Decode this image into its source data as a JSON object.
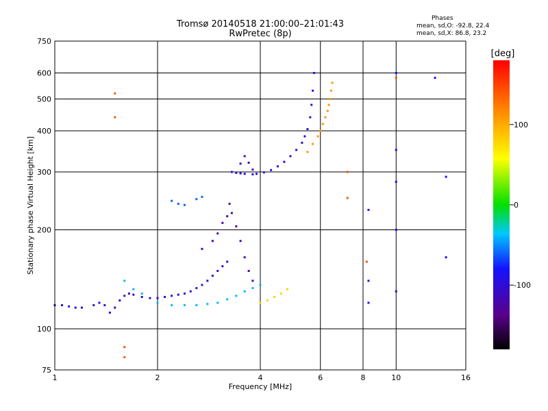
{
  "header": {
    "title": "Tromsø 20140518 21:00:00–21:01:43",
    "subtitle": "RwPretec (8p)",
    "phase_heading": "Phases",
    "phase_o": "mean, sd,O: -92.8, 22.4",
    "phase_x": "mean, sd,X: 86.8, 23.2"
  },
  "chart_data": {
    "type": "scatter",
    "xlabel": "Frequency [MHz]",
    "ylabel": "Stationary phase Virtual Height [km]",
    "x_scale": "log",
    "y_scale": "log",
    "xlim": [
      1,
      16
    ],
    "ylim": [
      75,
      750
    ],
    "x_ticks": [
      1,
      2,
      4,
      6,
      8,
      10,
      16
    ],
    "y_ticks": [
      75,
      100,
      200,
      300,
      400,
      500,
      600,
      750
    ],
    "grid": true,
    "colorbar": {
      "title": "[deg]",
      "range": [
        -180,
        180
      ],
      "ticks": [
        100,
        0,
        -100
      ]
    },
    "series": [
      {
        "values": [
          [
            1.0,
            118
          ],
          [
            1.05,
            118
          ],
          [
            1.1,
            117
          ],
          [
            1.15,
            116
          ],
          [
            1.2,
            116
          ],
          [
            1.3,
            118
          ],
          [
            1.35,
            120
          ],
          [
            1.4,
            118
          ],
          [
            1.45,
            112
          ],
          [
            1.5,
            116
          ],
          [
            1.55,
            122
          ],
          [
            1.6,
            126
          ],
          [
            1.65,
            128
          ],
          [
            1.7,
            127
          ],
          [
            1.8,
            125
          ],
          [
            1.9,
            124
          ],
          [
            2.0,
            124
          ],
          [
            2.1,
            125
          ],
          [
            2.2,
            126
          ],
          [
            2.3,
            127
          ],
          [
            2.4,
            128
          ],
          [
            2.5,
            130
          ],
          [
            2.6,
            133
          ],
          [
            2.7,
            136
          ],
          [
            2.8,
            140
          ],
          [
            2.9,
            145
          ],
          [
            3.0,
            150
          ],
          [
            3.1,
            155
          ],
          [
            3.2,
            160
          ]
        ],
        "phase": -100
      },
      {
        "values": [
          [
            1.6,
            140
          ],
          [
            1.7,
            132
          ],
          [
            1.8,
            128
          ],
          [
            2.0,
            120
          ],
          [
            2.2,
            118
          ],
          [
            2.4,
            118
          ],
          [
            2.6,
            118
          ],
          [
            2.8,
            119
          ],
          [
            3.0,
            120
          ],
          [
            3.2,
            123
          ],
          [
            3.4,
            126
          ],
          [
            3.6,
            130
          ],
          [
            3.8,
            133
          ],
          [
            4.0,
            136
          ]
        ],
        "phase": -40
      },
      {
        "values": [
          [
            2.7,
            175
          ],
          [
            2.9,
            185
          ],
          [
            3.0,
            195
          ],
          [
            3.1,
            210
          ],
          [
            3.2,
            220
          ],
          [
            3.25,
            240
          ],
          [
            3.3,
            225
          ],
          [
            3.4,
            205
          ],
          [
            3.5,
            185
          ],
          [
            3.6,
            165
          ],
          [
            3.7,
            150
          ],
          [
            3.8,
            140
          ]
        ],
        "phase": -120
      },
      {
        "values": [
          [
            3.3,
            300
          ],
          [
            3.4,
            298
          ],
          [
            3.5,
            297
          ],
          [
            3.6,
            296
          ],
          [
            3.8,
            295
          ],
          [
            3.9,
            296
          ],
          [
            4.1,
            299
          ],
          [
            4.3,
            304
          ],
          [
            4.5,
            312
          ],
          [
            4.7,
            322
          ],
          [
            4.9,
            335
          ],
          [
            5.1,
            350
          ],
          [
            5.3,
            368
          ],
          [
            5.4,
            385
          ],
          [
            5.5,
            405
          ],
          [
            5.6,
            440
          ],
          [
            5.65,
            480
          ],
          [
            5.7,
            530
          ],
          [
            5.75,
            600
          ]
        ],
        "phase": -95
      },
      {
        "values": [
          [
            3.5,
            318
          ],
          [
            3.6,
            335
          ],
          [
            3.7,
            320
          ],
          [
            3.8,
            305
          ]
        ],
        "phase": -120
      },
      {
        "values": [
          [
            5.5,
            345
          ],
          [
            5.7,
            365
          ],
          [
            5.9,
            385
          ],
          [
            6.0,
            400
          ],
          [
            6.1,
            420
          ],
          [
            6.2,
            440
          ],
          [
            6.3,
            460
          ],
          [
            6.35,
            480
          ],
          [
            6.4,
            500
          ],
          [
            6.45,
            530
          ],
          [
            6.5,
            560
          ]
        ],
        "phase": 110
      },
      {
        "values": [
          [
            4.0,
            120
          ],
          [
            4.2,
            122
          ],
          [
            4.4,
            125
          ],
          [
            4.6,
            128
          ],
          [
            4.8,
            132
          ]
        ],
        "phase": 80
      },
      {
        "values": [
          [
            2.2,
            245
          ],
          [
            2.3,
            240
          ],
          [
            2.4,
            238
          ],
          [
            2.6,
            248
          ],
          [
            2.7,
            252
          ]
        ],
        "phase": -60
      },
      {
        "values": [
          [
            10.0,
            130
          ],
          [
            10.0,
            200
          ],
          [
            10.0,
            280
          ],
          [
            10.0,
            350
          ],
          [
            10.0,
            600
          ],
          [
            8.3,
            230
          ],
          [
            8.3,
            140
          ],
          [
            8.3,
            120
          ],
          [
            13.0,
            580
          ],
          [
            14.0,
            290
          ],
          [
            14.0,
            165
          ]
        ],
        "phase": -90
      },
      {
        "values": [
          [
            1.5,
            520
          ],
          [
            1.5,
            440
          ],
          [
            1.6,
            88
          ],
          [
            1.6,
            82
          ],
          [
            7.2,
            250
          ],
          [
            7.2,
            300
          ],
          [
            10.0,
            580
          ],
          [
            8.2,
            160
          ]
        ],
        "phase": 140
      }
    ]
  }
}
